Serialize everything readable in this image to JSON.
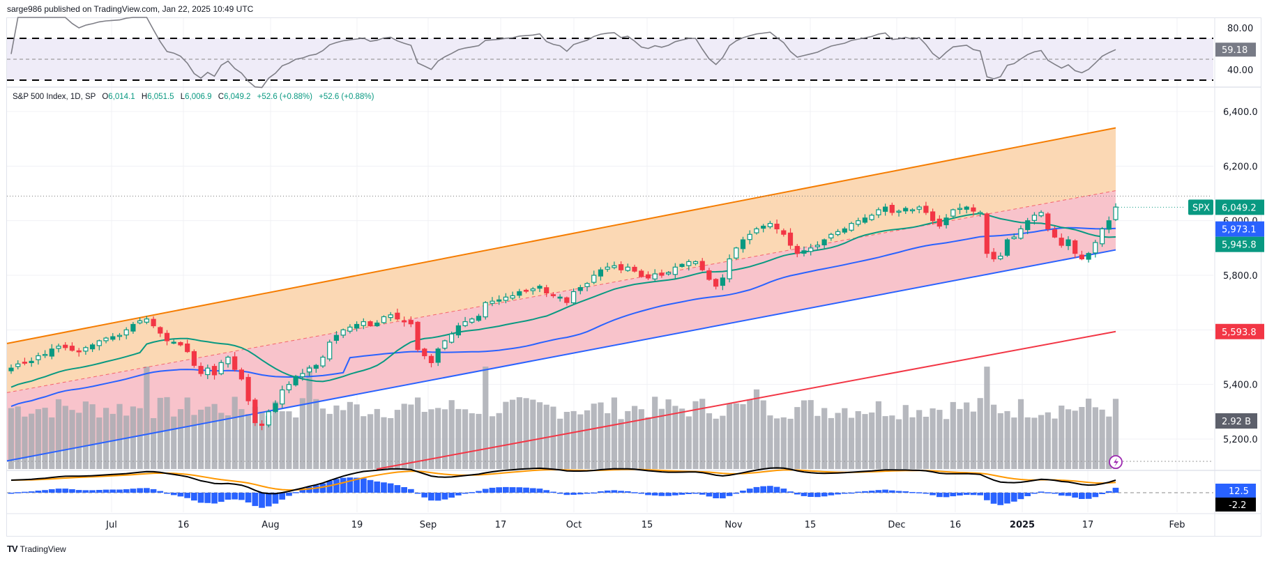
{
  "header": {
    "text": "sarge986 published on TradingView.com, Jan 22, 2025 10:49 UTC"
  },
  "legend": {
    "symbol": "S&P 500 Index, 1D, SP",
    "o_label": "O",
    "o": "6,014.1",
    "h_label": "H",
    "h": "6,051.5",
    "l_label": "L",
    "l": "6,006.9",
    "c_label": "C",
    "c": "6,049.2",
    "change1": "+52.6 (+0.88%)",
    "change2": "+52.6 (+0.88%)"
  },
  "footer": {
    "logo": "TV",
    "brand": "TradingView"
  },
  "colors": {
    "up": "#089981",
    "down": "#f23645",
    "channel_top": "#f57c00",
    "channel_fill_top": "#fbd6b0",
    "channel_fill_bottom": "#f8c0c8",
    "ma_short": "#089981",
    "ma_mid": "#2962ff",
    "ma_long": "#f23645",
    "volume": "#a9abb3",
    "rsi_line": "#7e7e86",
    "rsi_band": "#efecf8",
    "macd": "#000000",
    "signal": "#ff9800",
    "hist": "#2962ff"
  },
  "chart_data": {
    "type": "candlestick",
    "title": "S&P 500 Index, 1D, SP",
    "price_axis": {
      "ticks": [
        "6,400.0",
        "6,200.0",
        "6,000.0",
        "5,800.0",
        "5,400.0",
        "5,200.0"
      ],
      "range": [
        5100,
        6450
      ]
    },
    "rsi_axis": {
      "ticks": [
        "80.00",
        "40.00"
      ],
      "upper_band": 70,
      "lower_band": 30,
      "mid": 50
    },
    "x_ticks": [
      "Jul",
      "16",
      "Aug",
      "19",
      "Sep",
      "17",
      "Oct",
      "15",
      "Nov",
      "15",
      "Dec",
      "16",
      "2025",
      "17",
      "Feb"
    ],
    "price_tags": [
      {
        "label": "SPX",
        "value": "6,049.2",
        "color": "#089981"
      },
      {
        "value": "5,973.1",
        "color": "#2962ff"
      },
      {
        "value": "5,945.8",
        "color": "#089981"
      },
      {
        "value": "5,593.8",
        "color": "#f23645"
      },
      {
        "value": "2.92 B",
        "color": "#5d606b"
      }
    ],
    "rsi_value": "59.18",
    "macd_values": {
      "hist": "12.5",
      "macd": "-2.2"
    },
    "channel": {
      "upper_start": 5550,
      "upper_end": 6340,
      "mid_start": 5370,
      "mid_end": 6110,
      "lower_start": 5120,
      "lower_end": 5893
    },
    "ma_long": {
      "start": 5090,
      "end": 5593.8
    },
    "closes": [
      5460,
      5475,
      5480,
      5485,
      5505,
      5510,
      5530,
      5540,
      5535,
      5525,
      5520,
      5535,
      5545,
      5560,
      5570,
      5575,
      5580,
      5600,
      5620,
      5633,
      5640,
      5615,
      5588,
      5560,
      5555,
      5545,
      5520,
      5470,
      5440,
      5460,
      5435,
      5480,
      5500,
      5455,
      5420,
      5340,
      5260,
      5250,
      5300,
      5330,
      5380,
      5400,
      5430,
      5440,
      5460,
      5470,
      5500,
      5555,
      5580,
      5600,
      5610,
      5620,
      5630,
      5615,
      5625,
      5648,
      5655,
      5640,
      5630,
      5622,
      5528,
      5505,
      5480,
      5530,
      5560,
      5585,
      5615,
      5630,
      5640,
      5650,
      5700,
      5705,
      5710,
      5720,
      5725,
      5740,
      5745,
      5750,
      5760,
      5735,
      5725,
      5720,
      5700,
      5740,
      5755,
      5770,
      5800,
      5820,
      5830,
      5835,
      5820,
      5830,
      5815,
      5795,
      5790,
      5805,
      5800,
      5810,
      5830,
      5840,
      5850,
      5850,
      5820,
      5785,
      5760,
      5790,
      5860,
      5900,
      5930,
      5950,
      5970,
      5980,
      5990,
      5970,
      5950,
      5910,
      5880,
      5890,
      5900,
      5910,
      5930,
      5950,
      5960,
      5970,
      5990,
      6000,
      6010,
      6020,
      6040,
      6050,
      6030,
      6035,
      6045,
      6040,
      6050,
      6030,
      6000,
      5980,
      6010,
      6040,
      6045,
      6050,
      6035,
      6030,
      5880,
      5860,
      5870,
      5930,
      5940,
      5970,
      6000,
      6020,
      6030,
      5970,
      5940,
      5910,
      5930,
      5880,
      5860,
      5880,
      5920,
      5970,
      6000,
      6050
    ],
    "volume_range": [
      0,
      7.5
    ]
  }
}
